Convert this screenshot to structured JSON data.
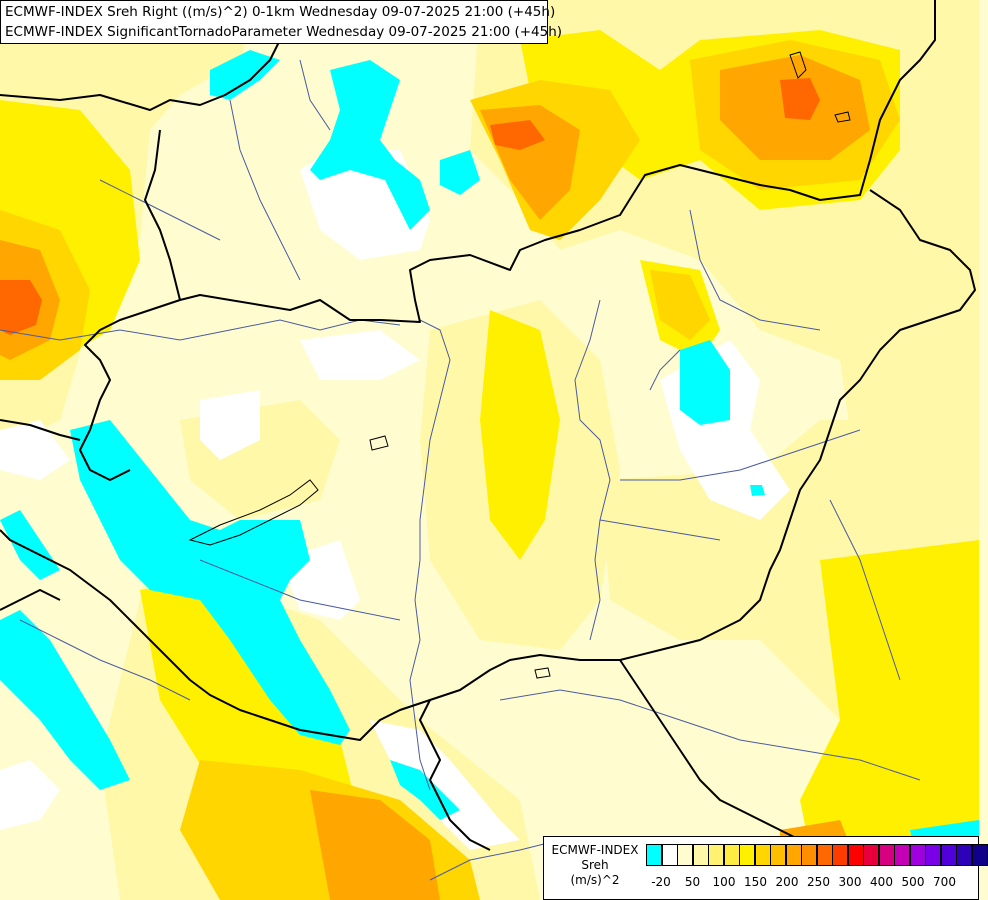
{
  "header": {
    "line1": "ECMWF-INDEX Sreh Right ((m/s)^2) 0-1km Wednesday 09-07-2025 21:00 (+45h)",
    "line2": "ECMWF-INDEX SignificantTornadoParameter Wednesday 09-07-2025 21:00 (+45h)"
  },
  "legend": {
    "title1": "ECMWF-INDEX",
    "title2": "Sreh",
    "title3": "(m/s)^2",
    "colors": [
      "#00ffff",
      "#ffffff",
      "#fffdd0",
      "#fff8a8",
      "#fff272",
      "#ffec40",
      "#fff000",
      "#ffd600",
      "#ffbf00",
      "#ffa700",
      "#ff8f00",
      "#ff6800",
      "#ff3b00",
      "#ff0000",
      "#e8003c",
      "#d7007f",
      "#c400b6",
      "#a000e0",
      "#7a00e8",
      "#5000d8",
      "#2e00b8",
      "#10008a"
    ],
    "ticks": [
      "-20",
      "50",
      "100",
      "150",
      "200",
      "250",
      "300",
      "400",
      "500",
      "700"
    ]
  },
  "colors": {
    "cyan": "#00ffff",
    "white": "#ffffff",
    "cream": "#fffdd0",
    "light_yellow": "#fff8a8",
    "yellow": "#fff000",
    "gold": "#ffd600",
    "orange": "#ffa700",
    "dark_orange": "#ff6800",
    "border": "#000000",
    "river": "#4a5aa0"
  }
}
